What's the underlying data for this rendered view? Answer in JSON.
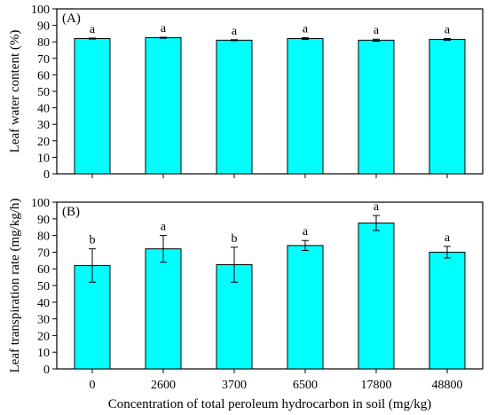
{
  "chart_data": [
    {
      "type": "bar",
      "panel_label": "(A)",
      "categories": [
        "0",
        "2600",
        "3700",
        "6500",
        "17800",
        "48800"
      ],
      "values": [
        82.0,
        82.5,
        81.0,
        82.0,
        81.0,
        81.5
      ],
      "error": [
        0.3,
        0.3,
        0.3,
        0.5,
        0.6,
        0.5
      ],
      "significance": [
        "a",
        "a",
        "a",
        "a",
        "a",
        "a"
      ],
      "xlabel": "",
      "ylabel": "Leaf water content (%)",
      "ylim": [
        0,
        100
      ],
      "yticks": [
        0,
        10,
        20,
        30,
        40,
        50,
        60,
        70,
        80,
        90,
        100
      ],
      "grid": false,
      "bar_color": "#00FFFF"
    },
    {
      "type": "bar",
      "panel_label": "(B)",
      "categories": [
        "0",
        "2600",
        "3700",
        "6500",
        "17800",
        "48800"
      ],
      "values": [
        62.0,
        72.0,
        62.5,
        74.0,
        87.5,
        70.0
      ],
      "error": [
        10.0,
        8.0,
        10.5,
        3.0,
        4.5,
        3.5
      ],
      "significance": [
        "b",
        "a",
        "b",
        "a",
        "a",
        "a"
      ],
      "xlabel": "Concentration of total peroleum hydrocarbon in soil (mg/kg)",
      "ylabel": "Leaf transpiration rate (mg/kg/h)",
      "ylim": [
        0,
        100
      ],
      "yticks": [
        0,
        10,
        20,
        30,
        40,
        50,
        60,
        70,
        80,
        90,
        100
      ],
      "grid": false,
      "bar_color": "#00FFFF"
    }
  ]
}
